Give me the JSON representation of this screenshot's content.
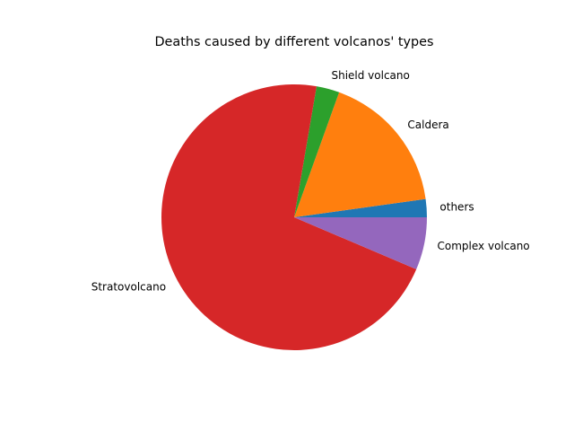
{
  "chart_data": {
    "type": "pie",
    "title": "Deaths caused by different volcanos' types",
    "start_angle_deg": 0,
    "direction": "counterclockwise",
    "slices": [
      {
        "label": "others",
        "value": 2.2,
        "color": "#1f77b4"
      },
      {
        "label": "Caldera",
        "value": 17.3,
        "color": "#ff7f0e"
      },
      {
        "label": "Shield volcano",
        "value": 2.8,
        "color": "#2ca02c"
      },
      {
        "label": "Stratovolcano",
        "value": 71.3,
        "color": "#d62728"
      },
      {
        "label": "Complex volcano",
        "value": 6.4,
        "color": "#9467bd"
      }
    ]
  }
}
